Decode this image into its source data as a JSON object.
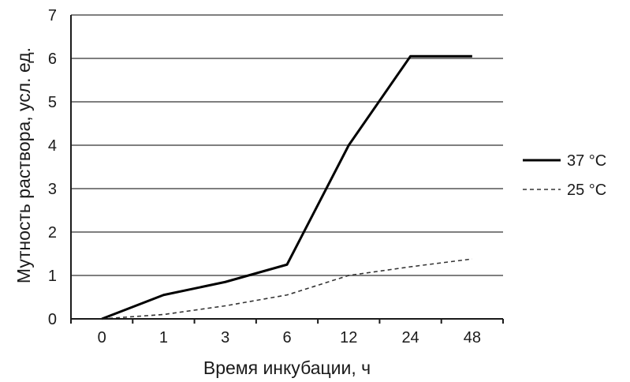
{
  "chart_data": {
    "type": "line",
    "xlabel": "Время инкубации, ч",
    "ylabel": "Мутность раствора, усл. ед.",
    "categories": [
      "0",
      "1",
      "3",
      "6",
      "12",
      "24",
      "48"
    ],
    "ylim": [
      0,
      7
    ],
    "yticks": [
      "0",
      "1",
      "2",
      "3",
      "4",
      "5",
      "6",
      "7"
    ],
    "grid": true,
    "legend_position": "right",
    "series": [
      {
        "name": "37 °C",
        "style": "solid",
        "color": "#000000",
        "points": [
          [
            0,
            0
          ],
          [
            1,
            0.55
          ],
          [
            2,
            0.85
          ],
          [
            3,
            1.25
          ],
          [
            4,
            4.0
          ],
          [
            5,
            6.05
          ],
          [
            6,
            6.05
          ]
        ]
      },
      {
        "name": "25 °C",
        "style": "dashed",
        "color": "#333333",
        "points": [
          [
            0,
            0
          ],
          [
            1,
            0.1
          ],
          [
            2,
            0.3
          ],
          [
            3,
            0.55
          ],
          [
            4,
            1.0
          ],
          [
            5,
            1.2
          ],
          [
            6,
            1.38
          ]
        ]
      }
    ]
  }
}
